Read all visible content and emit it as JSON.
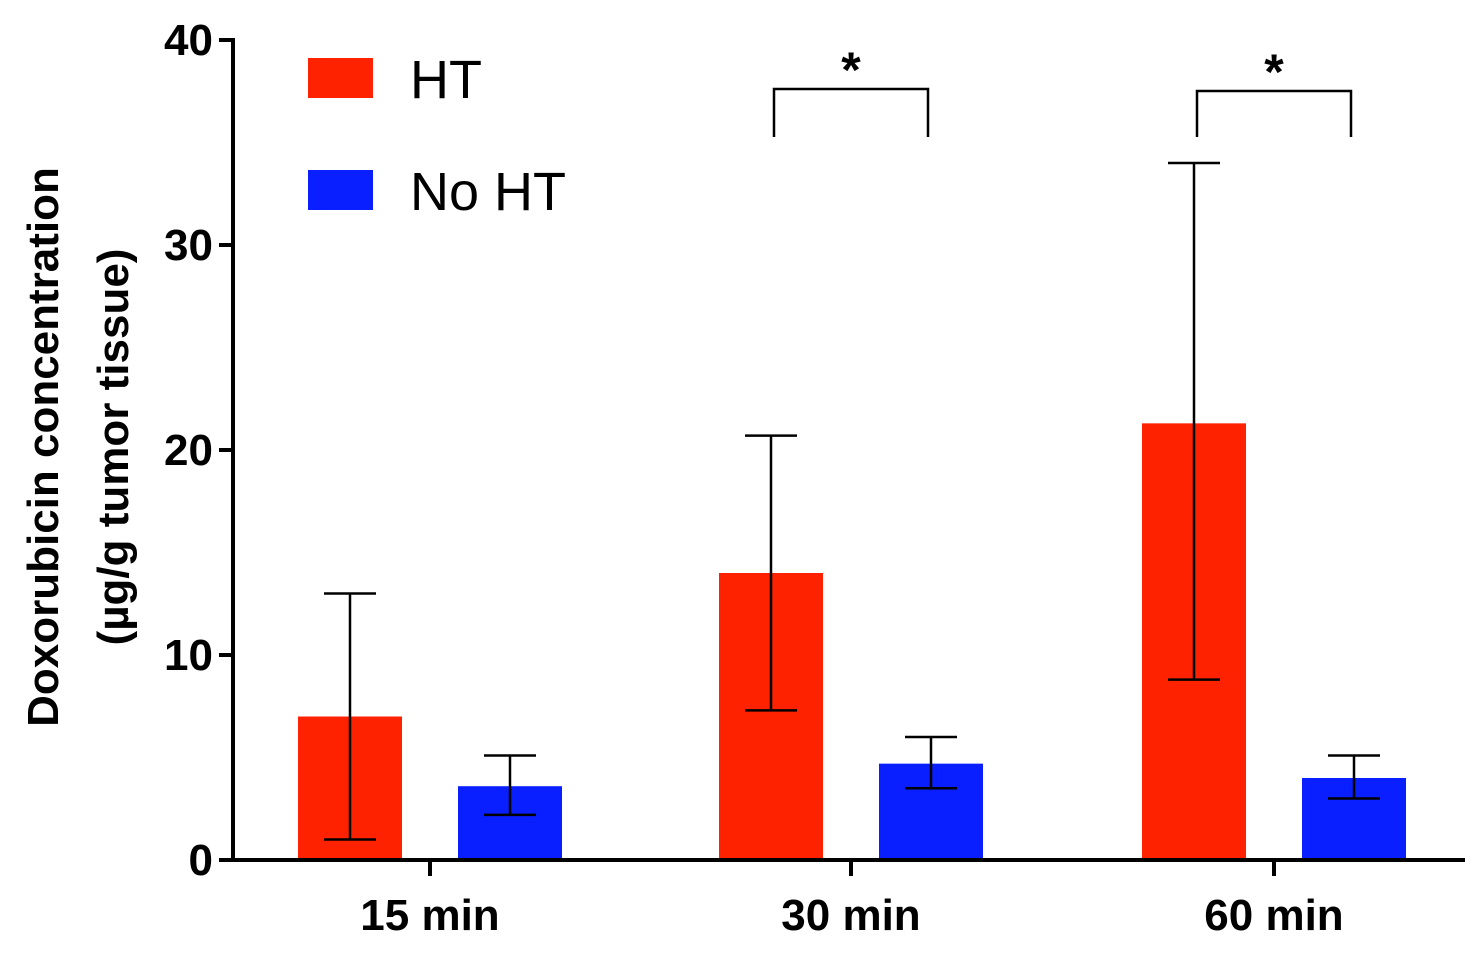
{
  "chart_data": {
    "type": "bar",
    "title": "",
    "xlabel": "",
    "ylabel_line1": "Doxorubicin concentration",
    "ylabel_line2": "(µg/g tumor tissue)",
    "ylim": [
      0,
      40
    ],
    "yticks": [
      0,
      10,
      20,
      30,
      40
    ],
    "ytick_labels": [
      "0",
      "10",
      "20",
      "30",
      "40"
    ],
    "categories": [
      "15 min",
      "30 min",
      "60 min"
    ],
    "series": [
      {
        "name": "HT",
        "color": "#ff2200",
        "values": [
          7.0,
          14.0,
          21.3
        ],
        "err_low": [
          1.0,
          7.3,
          8.8
        ],
        "err_high": [
          13.0,
          20.7,
          34.0
        ]
      },
      {
        "name": "No HT",
        "color": "#0a1fff",
        "values": [
          3.6,
          4.7,
          4.0
        ],
        "err_low": [
          2.2,
          3.5,
          3.0
        ],
        "err_high": [
          5.1,
          6.0,
          5.1
        ]
      }
    ],
    "legend": {
      "position": "top-left",
      "entries": [
        "HT",
        "No HT"
      ]
    },
    "annotations": [
      {
        "category": "30 min",
        "label": "*",
        "level": 37
      },
      {
        "category": "60 min",
        "label": "*",
        "level": 37
      }
    ],
    "grid": false
  }
}
